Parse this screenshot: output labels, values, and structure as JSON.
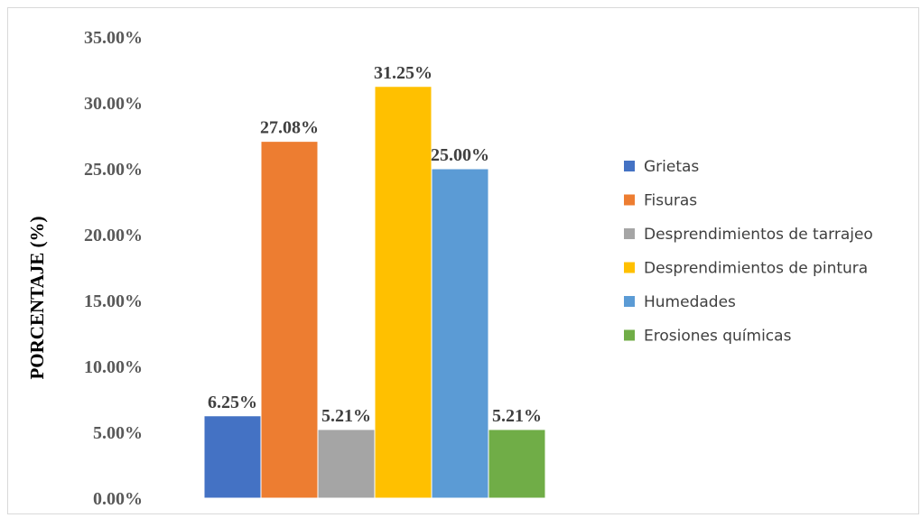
{
  "chart_data": {
    "type": "bar",
    "title": "",
    "xlabel": "",
    "ylabel": "PORCENTAJE (%)",
    "ylim": [
      0,
      35
    ],
    "yticks": [
      "0.00%",
      "5.00%",
      "10.00%",
      "15.00%",
      "20.00%",
      "25.00%",
      "30.00%",
      "35.00%"
    ],
    "grid": false,
    "legend_position": "right",
    "series": [
      {
        "name": "Grietas",
        "value": 6.25,
        "label": "6.25%",
        "color": "#4472C4"
      },
      {
        "name": "Fisuras",
        "value": 27.08,
        "label": "27.08%",
        "color": "#ED7D31"
      },
      {
        "name": "Desprendimientos de tarrajeo",
        "value": 5.21,
        "label": "5.21%",
        "color": "#A5A5A5"
      },
      {
        "name": "Desprendimientos de pintura",
        "value": 31.25,
        "label": "31.25%",
        "color": "#FFC000"
      },
      {
        "name": "Humedades",
        "value": 25.0,
        "label": "25.00%",
        "color": "#5B9BD5"
      },
      {
        "name": "Erosiones químicas",
        "value": 5.21,
        "label": "5.21%",
        "color": "#70AD47"
      }
    ]
  }
}
